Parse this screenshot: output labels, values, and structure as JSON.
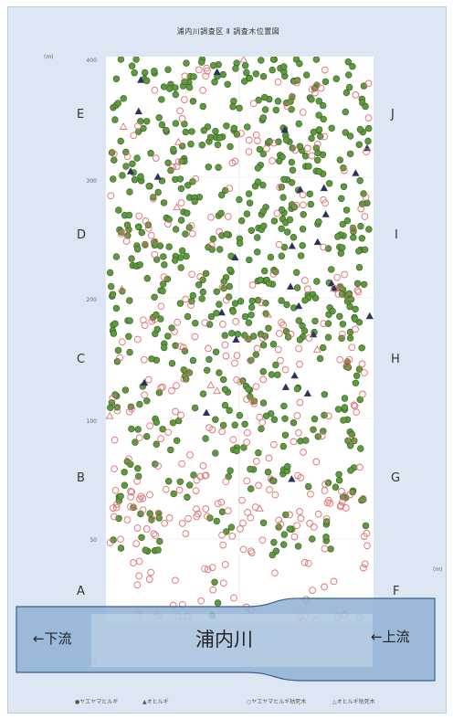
{
  "chart_data": {
    "type": "scatter",
    "title": "浦内川調査区 Ⅱ 調査木位置図",
    "y_unit": "(m)",
    "y_ticks": [
      "400",
      "300",
      "200",
      "100",
      "50",
      "0"
    ],
    "zones_left": [
      "E",
      "D",
      "C",
      "B",
      "A"
    ],
    "zones_right": [
      "J",
      "I",
      "H",
      "G",
      "F"
    ],
    "river": {
      "name": "浦内川",
      "downstream": "←下流",
      "upstream": "←上流"
    },
    "legend": [
      {
        "label": "●ヤエヤマヒルギ",
        "color": "#5f9a3f"
      },
      {
        "label": "▲オヒルギ",
        "color": "#2e3160"
      },
      {
        "label": "○ヤエヤマヒルギ枯死木",
        "color": "#e07070"
      },
      {
        "label": "△オヒルギ枯死木",
        "color": "#e07070"
      }
    ],
    "series": [
      {
        "name": "ヤエヤマヒルギ",
        "marker": "filled-circle",
        "color": "#5f9a3f",
        "density_bands": [
          {
            "y_range": [
              300,
              400
            ],
            "count": 230
          },
          {
            "y_range": [
              200,
              300
            ],
            "count": 240
          },
          {
            "y_range": [
              100,
              200
            ],
            "count": 140
          },
          {
            "y_range": [
              50,
              100
            ],
            "count": 55
          },
          {
            "y_range": [
              0,
              50
            ],
            "count": 4
          }
        ]
      },
      {
        "name": "オヒルギ",
        "marker": "filled-triangle",
        "color": "#2e3160",
        "density_bands": [
          {
            "y_range": [
              300,
              400
            ],
            "count": 10
          },
          {
            "y_range": [
              200,
              300
            ],
            "count": 12
          },
          {
            "y_range": [
              100,
              200
            ],
            "count": 6
          },
          {
            "y_range": [
              50,
              100
            ],
            "count": 0
          },
          {
            "y_range": [
              0,
              50
            ],
            "count": 0
          }
        ]
      },
      {
        "name": "ヤエヤマヒルギ枯死木",
        "marker": "open-circle",
        "color": "#e07070",
        "density_bands": [
          {
            "y_range": [
              300,
              400
            ],
            "count": 55
          },
          {
            "y_range": [
              200,
              300
            ],
            "count": 70
          },
          {
            "y_range": [
              100,
              200
            ],
            "count": 90
          },
          {
            "y_range": [
              50,
              100
            ],
            "count": 85
          },
          {
            "y_range": [
              0,
              50
            ],
            "count": 40
          }
        ]
      },
      {
        "name": "オヒルギ枯死木",
        "marker": "open-triangle",
        "color": "#e07070",
        "density_bands": [
          {
            "y_range": [
              300,
              400
            ],
            "count": 3
          },
          {
            "y_range": [
              200,
              300
            ],
            "count": 4
          },
          {
            "y_range": [
              100,
              200
            ],
            "count": 4
          },
          {
            "y_range": [
              50,
              100
            ],
            "count": 2
          },
          {
            "y_range": [
              0,
              50
            ],
            "count": 0
          }
        ]
      }
    ],
    "ylim": [
      0,
      400
    ]
  }
}
